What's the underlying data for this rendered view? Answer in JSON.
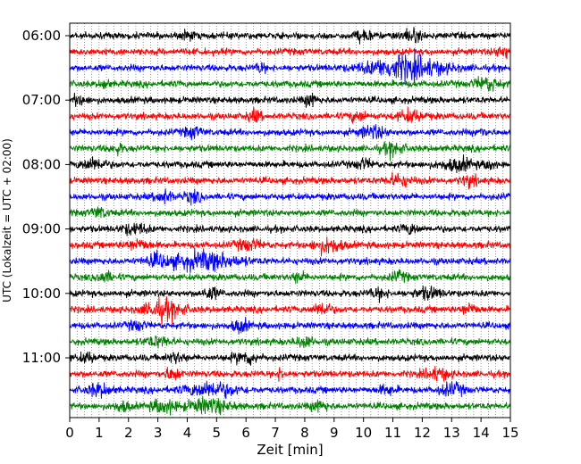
{
  "chart_data": {
    "type": "line",
    "xlabel": "Zeit  [min]",
    "ylabel": "UTC (Lokalzeit = UTC + 02:00)",
    "xlim": [
      0,
      15
    ],
    "x_ticks": [
      0,
      1,
      2,
      3,
      4,
      5,
      6,
      7,
      8,
      9,
      10,
      11,
      12,
      13,
      14,
      15
    ],
    "y_tick_labels": [
      "06:00",
      "07:00",
      "08:00",
      "09:00",
      "10:00",
      "11:00"
    ],
    "trace_interval_min": 15,
    "start_time": "06:00",
    "trace_count": 24,
    "colors": [
      "#000000",
      "#ff0000",
      "#0000ff",
      "#008000"
    ],
    "bursts": [
      [
        0,
        4.0,
        0.15,
        1.2
      ],
      [
        0,
        10.0,
        0.2,
        1.4
      ],
      [
        0,
        11.6,
        0.3,
        1.4
      ],
      [
        1,
        14.8,
        0.2,
        1.6
      ],
      [
        2,
        11.4,
        0.9,
        3.2
      ],
      [
        2,
        6.5,
        0.1,
        1.5
      ],
      [
        3,
        14.2,
        0.3,
        1.8
      ],
      [
        3,
        1.2,
        0.1,
        1.3
      ],
      [
        4,
        8.2,
        0.15,
        1.8
      ],
      [
        4,
        0.3,
        0.2,
        1.2
      ],
      [
        5,
        6.3,
        0.15,
        1.6
      ],
      [
        5,
        11.6,
        0.3,
        1.5
      ],
      [
        5,
        9.8,
        0.2,
        1.2
      ],
      [
        6,
        10.3,
        0.3,
        1.6
      ],
      [
        6,
        4.2,
        0.2,
        1.4
      ],
      [
        6,
        14.0,
        0.1,
        1.2
      ],
      [
        7,
        11.0,
        0.25,
        1.7
      ],
      [
        7,
        1.6,
        0.15,
        1.3
      ],
      [
        8,
        0.8,
        0.3,
        1.6
      ],
      [
        8,
        10.0,
        0.2,
        1.3
      ],
      [
        8,
        13.2,
        0.4,
        1.6
      ],
      [
        8,
        14.3,
        0.1,
        1.5
      ],
      [
        9,
        11.2,
        0.3,
        1.5
      ],
      [
        9,
        13.6,
        0.2,
        1.3
      ],
      [
        10,
        3.2,
        0.2,
        1.7
      ],
      [
        10,
        4.2,
        0.2,
        1.4
      ],
      [
        11,
        1.0,
        0.2,
        1.3
      ],
      [
        12,
        2.2,
        0.3,
        1.4
      ],
      [
        12,
        11.6,
        0.2,
        1.3
      ],
      [
        13,
        8.8,
        0.35,
        2.0
      ],
      [
        13,
        2.3,
        0.3,
        1.3
      ],
      [
        13,
        6.1,
        0.3,
        1.4
      ],
      [
        14,
        4.6,
        0.8,
        2.4
      ],
      [
        14,
        3.0,
        0.3,
        1.4
      ],
      [
        15,
        1.2,
        0.2,
        1.3
      ],
      [
        15,
        7.8,
        0.15,
        1.3
      ],
      [
        15,
        11.2,
        0.2,
        1.2
      ],
      [
        16,
        4.8,
        0.2,
        1.5
      ],
      [
        16,
        12.2,
        0.3,
        1.4
      ],
      [
        16,
        10.5,
        0.2,
        1.3
      ],
      [
        17,
        3.2,
        0.45,
        2.6
      ],
      [
        17,
        8.6,
        0.2,
        1.8
      ],
      [
        17,
        13.6,
        0.2,
        1.4
      ],
      [
        18,
        5.8,
        0.2,
        1.7
      ],
      [
        18,
        2.3,
        0.2,
        1.2
      ],
      [
        19,
        8.0,
        0.2,
        1.5
      ],
      [
        19,
        3.0,
        0.3,
        1.3
      ],
      [
        20,
        6.0,
        0.3,
        1.6
      ],
      [
        20,
        3.6,
        0.2,
        1.3
      ],
      [
        20,
        0.6,
        0.2,
        1.2
      ],
      [
        21,
        3.5,
        0.2,
        1.6
      ],
      [
        21,
        7.2,
        0.1,
        1.5
      ],
      [
        21,
        12.5,
        0.3,
        1.5
      ],
      [
        22,
        1.0,
        0.3,
        1.6
      ],
      [
        22,
        4.8,
        0.6,
        2.0
      ],
      [
        22,
        13.0,
        0.3,
        1.5
      ],
      [
        22,
        10.8,
        0.2,
        1.2
      ],
      [
        23,
        3.2,
        0.3,
        1.8
      ],
      [
        23,
        4.7,
        0.5,
        1.9
      ],
      [
        23,
        8.5,
        0.2,
        1.5
      ],
      [
        23,
        1.8,
        0.2,
        1.3
      ]
    ]
  }
}
